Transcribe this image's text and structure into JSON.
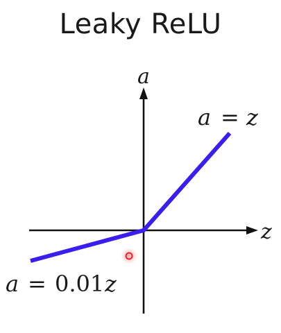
{
  "title": "Leaky ReLU",
  "axes": {
    "y_label": "a",
    "x_label": "z"
  },
  "annotations": {
    "positive_var_a": "a",
    "positive_equals": "=",
    "positive_var_z": "z",
    "negative_var_a": "a",
    "negative_equals": "=",
    "negative_coef": "0.01",
    "negative_var_z": "z"
  },
  "colors": {
    "function_line": "#3a1ef0",
    "axes": "#111111",
    "cursor_marker": "#e8262a"
  }
}
